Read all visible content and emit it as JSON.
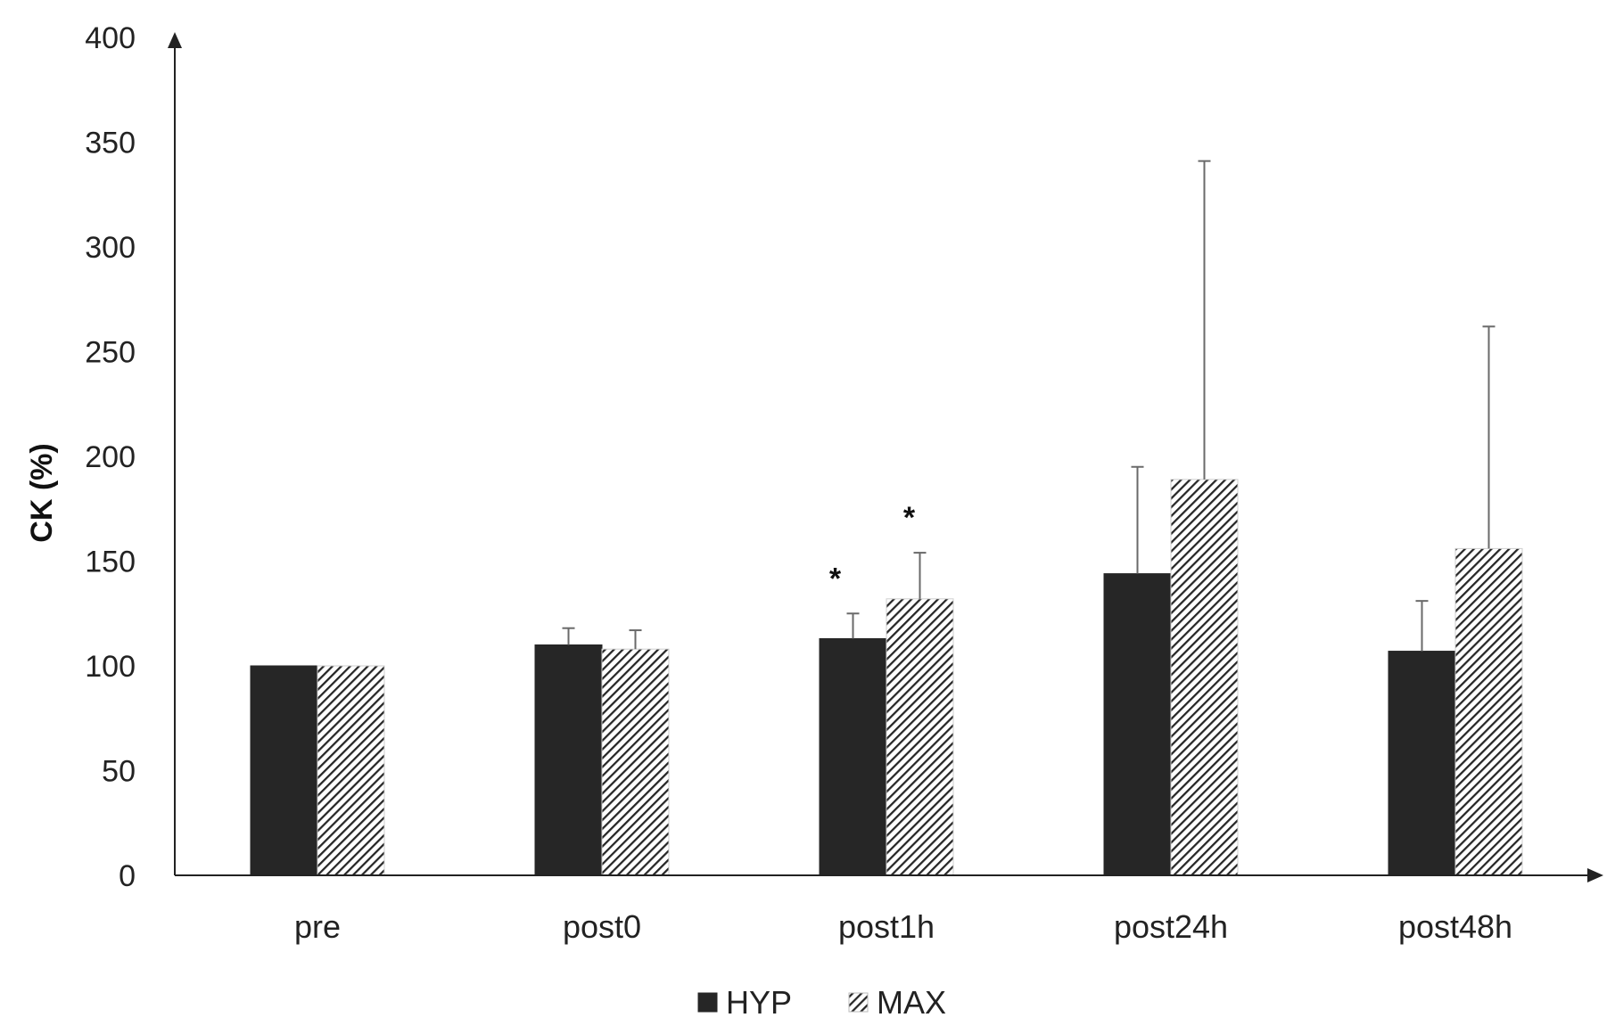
{
  "chart_data": {
    "type": "bar",
    "title": "",
    "xlabel": "",
    "ylabel": "CK (%)",
    "ylim": [
      0,
      400
    ],
    "yticks": [
      "0",
      "50",
      "100",
      "150",
      "200",
      "250",
      "300",
      "350",
      "400"
    ],
    "categories": [
      "pre",
      "post0",
      "post1h",
      "post24h",
      "post48h"
    ],
    "series": [
      {
        "name": "HYP",
        "color": "#262626",
        "pattern": "solid",
        "values": [
          100,
          110,
          113,
          144,
          107
        ],
        "errors": [
          0,
          8,
          12,
          51,
          24
        ]
      },
      {
        "name": "MAX",
        "color": "#262626",
        "pattern": "diagonal-hatch",
        "values": [
          100,
          108,
          132,
          189,
          156
        ],
        "errors": [
          0,
          9,
          22,
          152,
          106
        ]
      }
    ],
    "annotations": [
      {
        "category": "post1h",
        "series": "HYP",
        "text": "*"
      },
      {
        "category": "post1h",
        "series": "MAX",
        "text": "*"
      }
    ],
    "legend": {
      "position": "bottom-center"
    },
    "grid": false
  }
}
